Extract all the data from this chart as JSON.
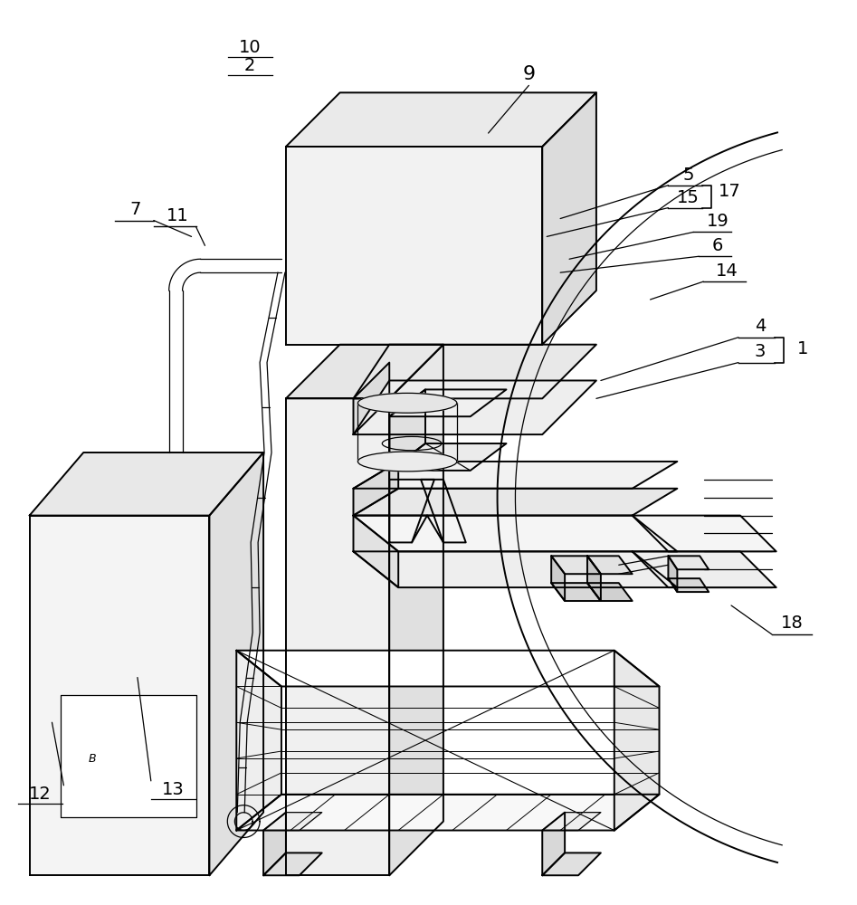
{
  "bg_color": "#ffffff",
  "line_color": "#000000",
  "lw": 1.4,
  "lw_thin": 0.9,
  "fig_width": 9.47,
  "fig_height": 10.0
}
